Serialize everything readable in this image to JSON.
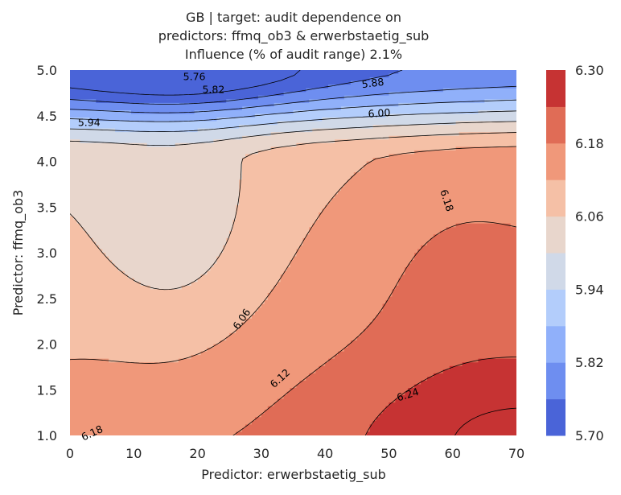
{
  "chart_data": {
    "type": "contour",
    "title_lines": [
      "GB | target: audit dependence on",
      "predictors: ffmq_ob3 & erwerbstaetig_sub",
      "Influence (% of audit range) 2.1%"
    ],
    "xlabel": "Predictor: erwerbstaetig_sub",
    "ylabel": "Predictor: ffmq_ob3",
    "xlim": [
      0,
      70
    ],
    "ylim": [
      1.0,
      5.0
    ],
    "x_ticks": [
      "0",
      "10",
      "20",
      "30",
      "40",
      "50",
      "60",
      "70"
    ],
    "y_ticks": [
      "1.0",
      "1.5",
      "2.0",
      "2.5",
      "3.0",
      "3.5",
      "4.0",
      "4.5",
      "5.0"
    ],
    "grid": false,
    "colormap": "coolwarm",
    "levels": [
      5.7,
      5.73,
      5.76,
      5.79,
      5.82,
      5.85,
      5.88,
      5.91,
      5.94,
      5.97,
      6.0,
      6.03,
      6.06,
      6.09,
      6.12,
      6.15,
      6.18,
      6.21,
      6.24,
      6.27,
      6.3
    ],
    "band_colors": [
      "#4a64d8",
      "#6e8ef0",
      "#90b0fa",
      "#b3cdfb",
      "#d0d9e8",
      "#e8d6cc",
      "#f5c0a6",
      "#f0987a",
      "#e06c56",
      "#c63333"
    ],
    "contour_labels": [
      {
        "text": "5.76",
        "x": 19.5,
        "y": 4.92,
        "angle": 0
      },
      {
        "text": "5.82",
        "x": 22.5,
        "y": 4.78,
        "angle": 0
      },
      {
        "text": "5.88",
        "x": 47.5,
        "y": 4.85,
        "angle": -7
      },
      {
        "text": "5.94",
        "x": 3.0,
        "y": 4.42,
        "angle": 0
      },
      {
        "text": "6.00",
        "x": 48.5,
        "y": 4.52,
        "angle": -4
      },
      {
        "text": "6.06",
        "x": 27.0,
        "y": 2.27,
        "angle": -55
      },
      {
        "text": "6.12",
        "x": 33.0,
        "y": 1.62,
        "angle": -42
      },
      {
        "text": "6.18",
        "x": 59.0,
        "y": 3.57,
        "angle": 72
      },
      {
        "text": "6.24",
        "x": 53.0,
        "y": 1.44,
        "angle": -17
      },
      {
        "text": "6.18",
        "x": 3.5,
        "y": 1.02,
        "angle": -25
      }
    ],
    "colorbar_ticks": [
      "5.70",
      "5.82",
      "5.94",
      "6.06",
      "6.18",
      "6.30"
    ],
    "colorbar_tick_values": [
      5.7,
      5.82,
      5.94,
      6.06,
      6.18,
      6.3
    ]
  }
}
